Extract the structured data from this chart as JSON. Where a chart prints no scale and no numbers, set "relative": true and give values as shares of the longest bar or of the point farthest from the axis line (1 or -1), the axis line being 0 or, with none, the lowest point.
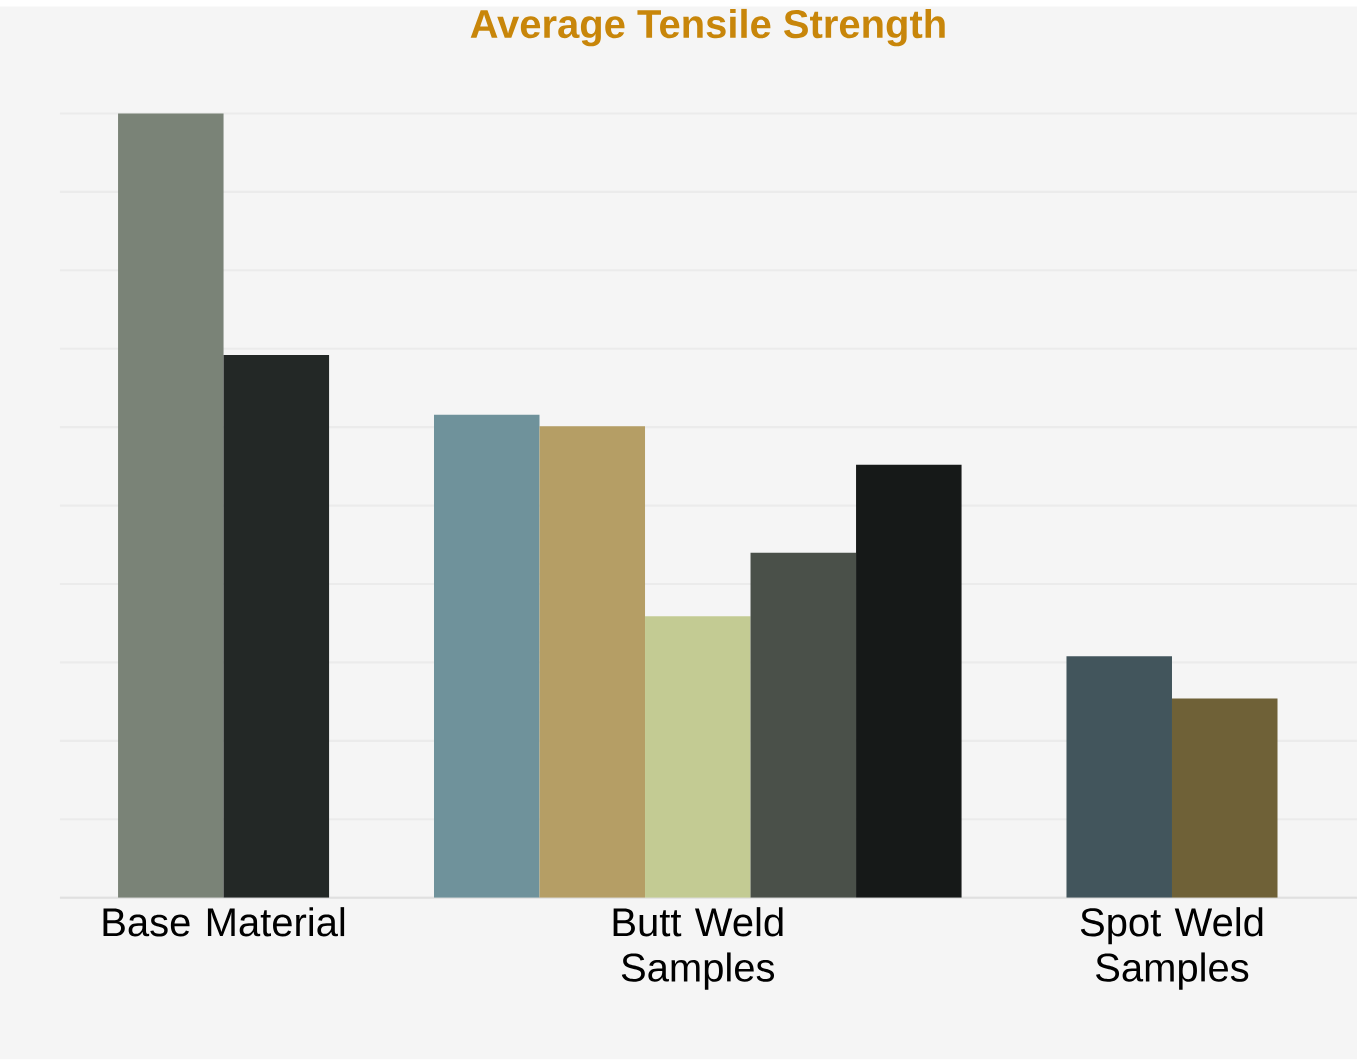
{
  "chart_data": {
    "type": "bar",
    "title": "Average Tensile Strength",
    "relative": true,
    "grid": "y",
    "categories": [
      "Base Material",
      "Butt Weld Samples",
      "Spot Weld Samples"
    ],
    "series": [
      {
        "colors": [
          "#7a8377",
          "#6f929b",
          "#42555c"
        ],
        "values": [
          1.0,
          0.616,
          0.308
        ]
      },
      {
        "colors": [
          "#232826",
          "#b59e65",
          "#6f6137"
        ],
        "values": [
          0.692,
          0.601,
          0.254
        ]
      },
      {
        "colors": [
          null,
          "#c3cb93",
          null
        ],
        "values": [
          null,
          0.359,
          null
        ]
      },
      {
        "colors": [
          null,
          "#4a5049",
          null
        ],
        "values": [
          null,
          0.44,
          null
        ]
      },
      {
        "colors": [
          null,
          "#161918",
          null
        ],
        "values": [
          null,
          0.552,
          null
        ]
      }
    ]
  }
}
